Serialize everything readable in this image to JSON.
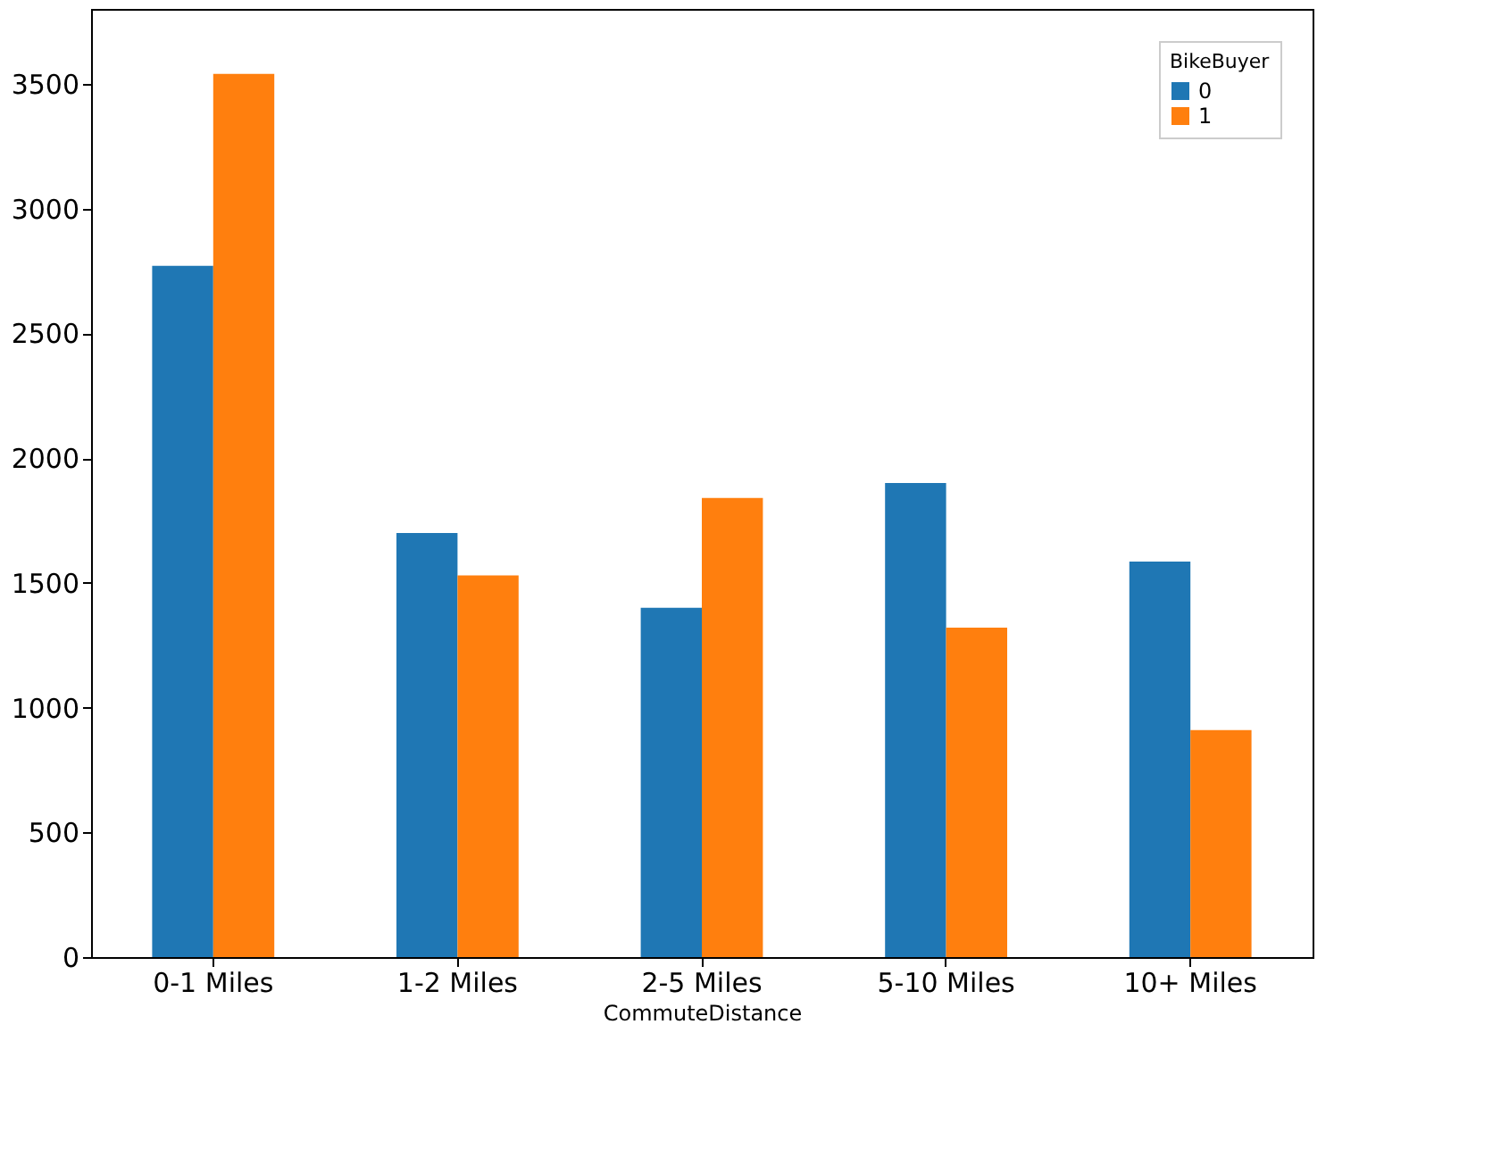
{
  "chart_data": {
    "type": "bar",
    "xlabel": "CommuteDistance",
    "legend_title": "BikeBuyer",
    "categories": [
      "0-1 Miles",
      "1-2 Miles",
      "2-5 Miles",
      "5-10 Miles",
      "10+ Miles"
    ],
    "series": [
      {
        "name": "0",
        "color": "#1f77b4",
        "values": [
          2770,
          1700,
          1400,
          1900,
          1585
        ]
      },
      {
        "name": "1",
        "color": "#ff7f0e",
        "values": [
          3540,
          1530,
          1840,
          1320,
          910
        ]
      }
    ],
    "ylim": [
      0,
      3800
    ],
    "yticks": [
      0,
      500,
      1000,
      1500,
      2000,
      2500,
      3000,
      3500
    ],
    "grid": false,
    "legend": "top right"
  }
}
